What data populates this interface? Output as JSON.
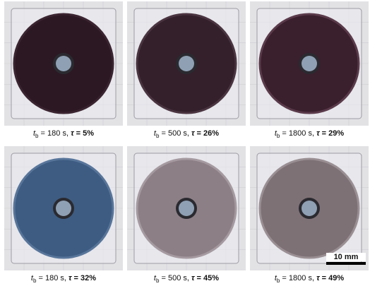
{
  "panels": [
    {
      "var": "t",
      "sub": "b",
      "time": " = 180 s, ",
      "tau": "τ",
      "result": " = 5%"
    },
    {
      "var": "t",
      "sub": "b",
      "time": " = 500 s, ",
      "tau": "τ",
      "result": " = 26%"
    },
    {
      "var": "t",
      "sub": "b",
      "time": " = 1800 s, ",
      "tau": "τ",
      "result": " = 29%"
    },
    {
      "var": "t",
      "sub": "b",
      "time": " = 180 s, ",
      "tau": "τ",
      "result": " = 32%"
    },
    {
      "var": "t",
      "sub": "b",
      "time": " = 500 s, ",
      "tau": "τ",
      "result": " = 45%"
    },
    {
      "var": "t",
      "sub": "b",
      "time": " = 1800 s, ",
      "tau": "τ",
      "result": " = 49%"
    }
  ],
  "scale_bar": "10 mm"
}
